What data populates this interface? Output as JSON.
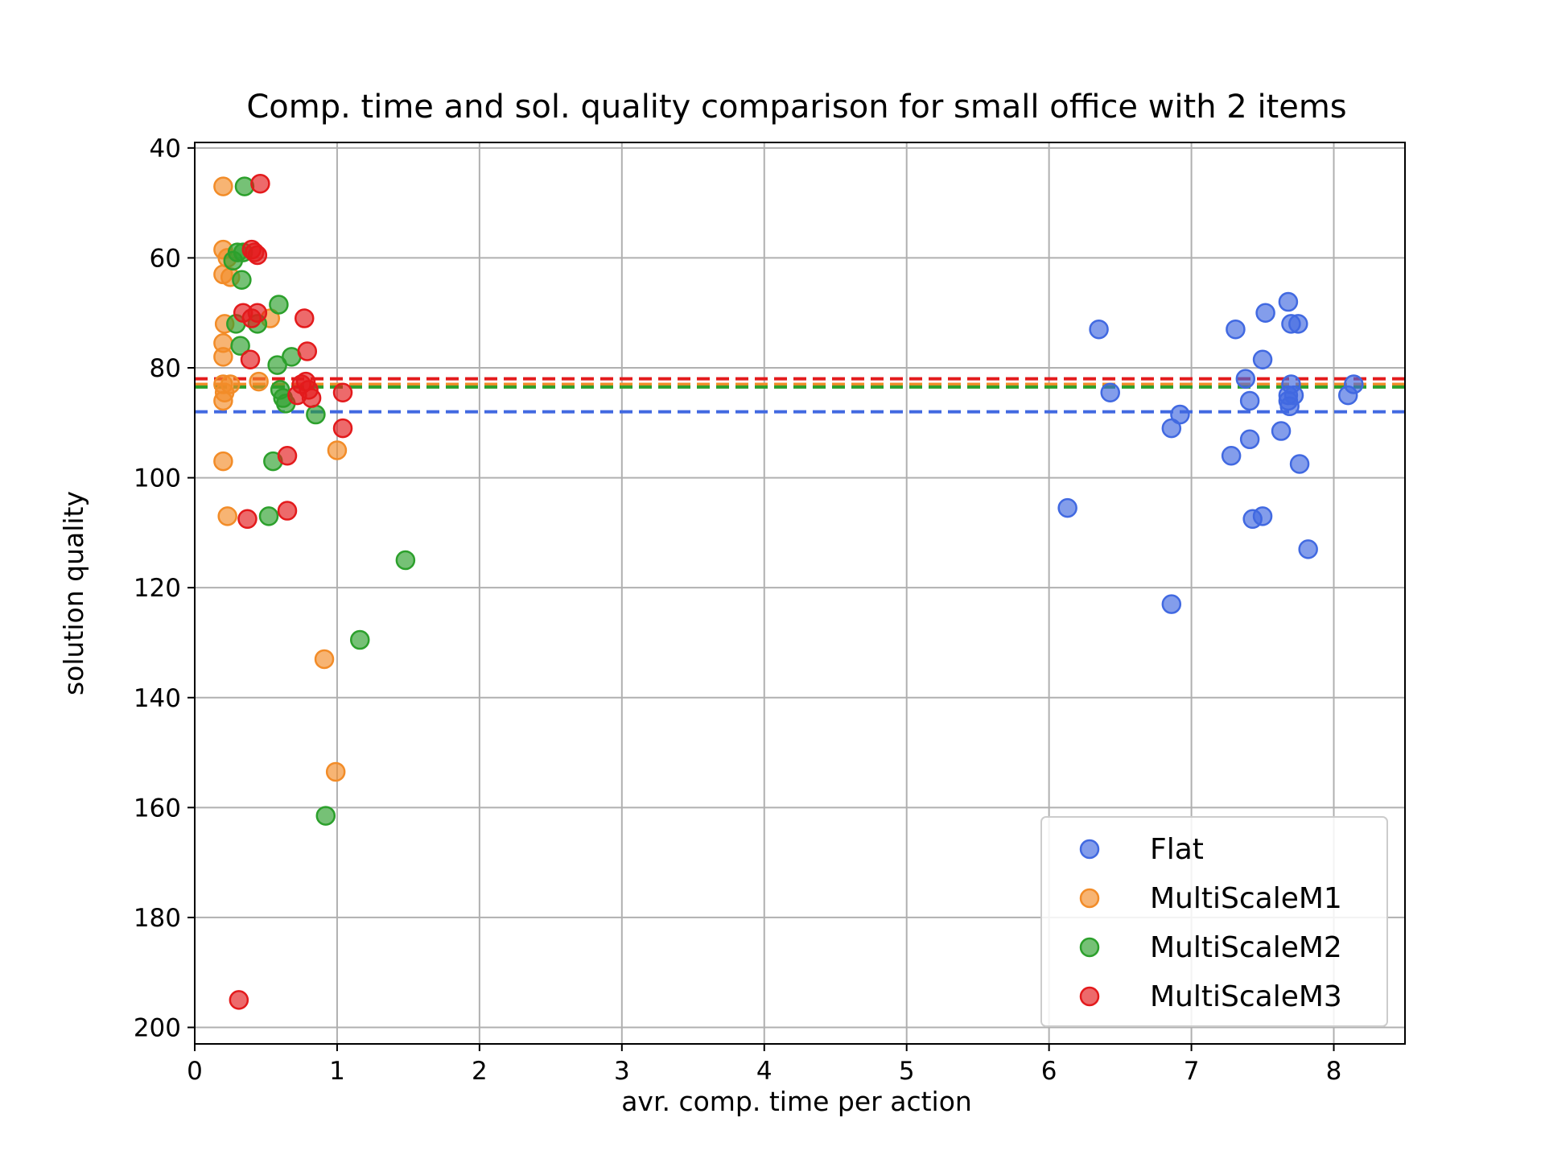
{
  "chart_data": {
    "type": "scatter",
    "title": "Comp. time and sol. quality comparison for small office with 2 items",
    "xlabel": "avr. comp. time per action",
    "ylabel": "solution quality",
    "xlim": [
      0,
      8.5
    ],
    "ylim": [
      203,
      39
    ],
    "y_inverted": true,
    "grid": true,
    "legend_position": "lower right",
    "xticks": [
      "0",
      "1",
      "2",
      "3",
      "4",
      "5",
      "6",
      "7",
      "8"
    ],
    "yticks": [
      "40",
      "60",
      "80",
      "100",
      "120",
      "140",
      "160",
      "180",
      "200"
    ],
    "series": [
      {
        "name": "Flat",
        "color": "#4169e1",
        "mean_line": 88,
        "points": [
          [
            6.13,
            105.5
          ],
          [
            6.35,
            73
          ],
          [
            6.43,
            84.5
          ],
          [
            6.86,
            91
          ],
          [
            6.86,
            123
          ],
          [
            6.92,
            88.5
          ],
          [
            7.28,
            96
          ],
          [
            7.31,
            73
          ],
          [
            7.38,
            82
          ],
          [
            7.41,
            86
          ],
          [
            7.41,
            93
          ],
          [
            7.43,
            107.5
          ],
          [
            7.5,
            78.5
          ],
          [
            7.5,
            107
          ],
          [
            7.52,
            70
          ],
          [
            7.63,
            91.5
          ],
          [
            7.68,
            68
          ],
          [
            7.68,
            85
          ],
          [
            7.68,
            86
          ],
          [
            7.69,
            87
          ],
          [
            7.7,
            72
          ],
          [
            7.7,
            83
          ],
          [
            7.72,
            85
          ],
          [
            7.75,
            72
          ],
          [
            7.76,
            97.5
          ],
          [
            7.82,
            113
          ],
          [
            8.1,
            85
          ],
          [
            8.14,
            83
          ]
        ]
      },
      {
        "name": "MultiScaleM1",
        "color": "#f28c28",
        "mean_line": 83,
        "points": [
          [
            0.2,
            47
          ],
          [
            0.2,
            58.5
          ],
          [
            0.2,
            63
          ],
          [
            0.21,
            72
          ],
          [
            0.2,
            75.5
          ],
          [
            0.2,
            78
          ],
          [
            0.2,
            83
          ],
          [
            0.21,
            84.5
          ],
          [
            0.2,
            86
          ],
          [
            0.2,
            97
          ],
          [
            0.23,
            107
          ],
          [
            0.23,
            60
          ],
          [
            0.25,
            63.5
          ],
          [
            0.25,
            83
          ],
          [
            0.45,
            82.5
          ],
          [
            0.53,
            71
          ],
          [
            0.91,
            133
          ],
          [
            0.99,
            153.5
          ],
          [
            1.0,
            95
          ]
        ]
      },
      {
        "name": "MultiScaleM2",
        "color": "#2ca02c",
        "mean_line": 83.5,
        "points": [
          [
            0.35,
            47
          ],
          [
            0.27,
            60.5
          ],
          [
            0.3,
            59
          ],
          [
            0.34,
            59
          ],
          [
            0.33,
            64
          ],
          [
            0.29,
            72
          ],
          [
            0.32,
            76
          ],
          [
            0.44,
            72
          ],
          [
            0.59,
            68.5
          ],
          [
            0.58,
            79.5
          ],
          [
            0.68,
            78
          ],
          [
            0.55,
            97
          ],
          [
            0.52,
            107
          ],
          [
            0.6,
            84
          ],
          [
            0.62,
            85.5
          ],
          [
            0.64,
            86.5
          ],
          [
            0.85,
            88.5
          ],
          [
            1.48,
            115
          ],
          [
            1.16,
            129.5
          ],
          [
            0.92,
            161.5
          ]
        ]
      },
      {
        "name": "MultiScaleM3",
        "color": "#e31a1c",
        "mean_line": 82,
        "points": [
          [
            0.46,
            46.5
          ],
          [
            0.4,
            58.5
          ],
          [
            0.44,
            59.5
          ],
          [
            0.42,
            59
          ],
          [
            0.34,
            70
          ],
          [
            0.4,
            71
          ],
          [
            0.44,
            70
          ],
          [
            0.39,
            78.5
          ],
          [
            0.77,
            71
          ],
          [
            0.79,
            77
          ],
          [
            0.65,
            96
          ],
          [
            0.65,
            106
          ],
          [
            0.37,
            107.5
          ],
          [
            0.31,
            195
          ],
          [
            1.04,
            84.5
          ],
          [
            1.04,
            91
          ],
          [
            0.72,
            85
          ],
          [
            0.75,
            83
          ],
          [
            0.78,
            82.5
          ],
          [
            0.8,
            84
          ],
          [
            0.82,
            85.5
          ]
        ]
      }
    ]
  }
}
